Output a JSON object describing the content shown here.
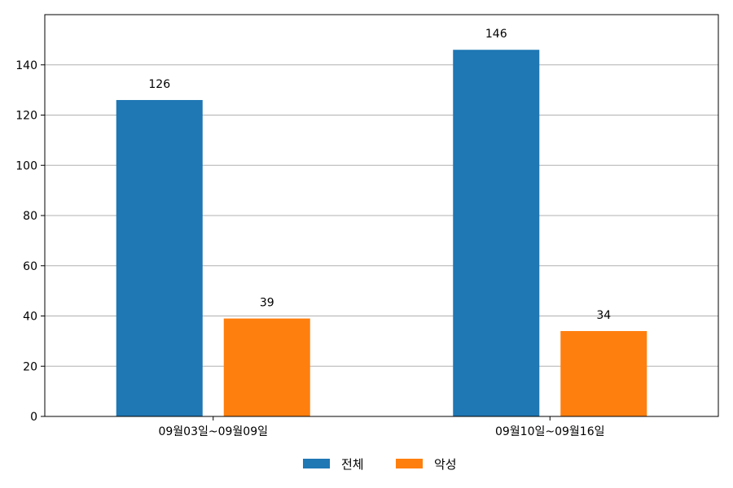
{
  "chart_data": {
    "type": "bar",
    "categories": [
      "09월03일~09월09일",
      "09월10일~09월16일"
    ],
    "series": [
      {
        "name": "전체",
        "values": [
          126,
          146
        ],
        "color": "#1f77b4"
      },
      {
        "name": "악성",
        "values": [
          39,
          34
        ],
        "color": "#ff7f0e"
      }
    ],
    "title": "",
    "xlabel": "",
    "ylabel": "",
    "ylim": [
      0,
      160
    ],
    "yticks": [
      0,
      20,
      40,
      60,
      80,
      100,
      120,
      140
    ],
    "grid": "y",
    "legend_position": "bottom-center"
  }
}
